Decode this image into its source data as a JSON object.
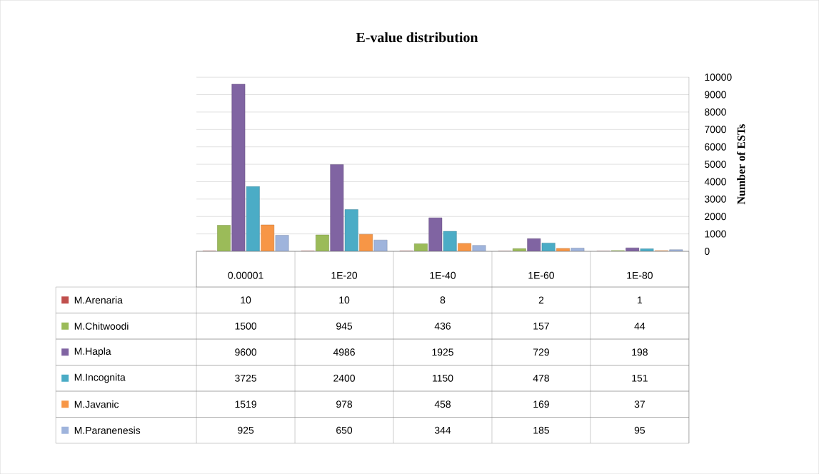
{
  "chart_data": {
    "type": "bar",
    "title": "E-value distribution",
    "ylabel": "Number of ESTs",
    "categories": [
      "0.00001",
      "1E-20",
      "1E-40",
      "1E-60",
      "1E-80"
    ],
    "series": [
      {
        "name": "M.Arenaria",
        "color": "#c0504d",
        "values": [
          10,
          10,
          8,
          2,
          1
        ]
      },
      {
        "name": "M.Chitwoodi",
        "color": "#9bbb59",
        "values": [
          1500,
          945,
          436,
          157,
          44
        ]
      },
      {
        "name": "M.Hapla",
        "color": "#8064a2",
        "values": [
          9600,
          4986,
          1925,
          729,
          198
        ]
      },
      {
        "name": "M.Incognita",
        "color": "#4bacc6",
        "values": [
          3725,
          2400,
          1150,
          478,
          151
        ]
      },
      {
        "name": "M.Javanic",
        "color": "#f79646",
        "values": [
          1519,
          978,
          458,
          169,
          37
        ]
      },
      {
        "name": "M.Paranenesis",
        "color": "#9fb4dc",
        "values": [
          925,
          650,
          344,
          185,
          95
        ]
      }
    ],
    "ylim": [
      0,
      10000
    ],
    "yticks": [
      0,
      1000,
      2000,
      3000,
      4000,
      5000,
      6000,
      7000,
      8000,
      9000,
      10000
    ],
    "grid": "y",
    "legend": "bottom",
    "data_labels": true
  }
}
